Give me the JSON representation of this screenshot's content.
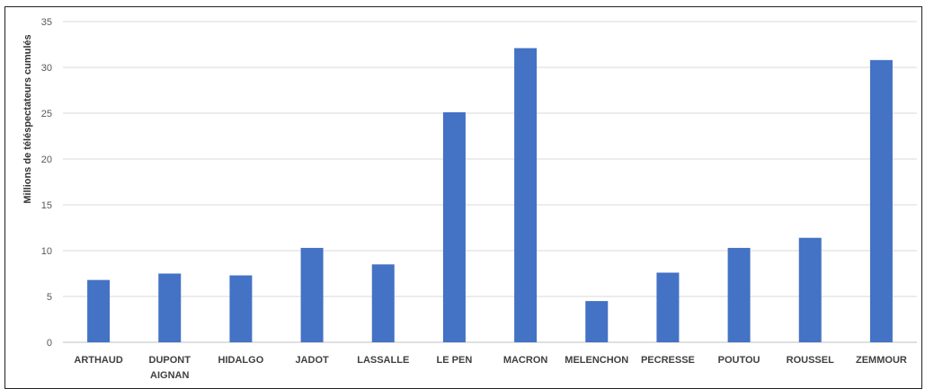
{
  "chart_data": {
    "type": "bar",
    "ylabel": "Millions de téléspectateurs cumulés",
    "ylim": [
      0,
      35
    ],
    "yticks": [
      0,
      5,
      10,
      15,
      20,
      25,
      30,
      35
    ],
    "grid": true,
    "bar_color": "#4472C4",
    "categories": [
      [
        "ARTHAUD"
      ],
      [
        "DUPONT",
        "AIGNAN"
      ],
      [
        "HIDALGO"
      ],
      [
        "JADOT"
      ],
      [
        "LASSALLE"
      ],
      [
        "LE PEN"
      ],
      [
        "MACRON"
      ],
      [
        "MELENCHON"
      ],
      [
        "PECRESSE"
      ],
      [
        "POUTOU"
      ],
      [
        "ROUSSEL"
      ],
      [
        "ZEMMOUR"
      ]
    ],
    "values": [
      6.8,
      7.5,
      7.3,
      10.3,
      8.5,
      25.1,
      32.1,
      4.5,
      7.6,
      10.3,
      11.4,
      30.8
    ]
  }
}
